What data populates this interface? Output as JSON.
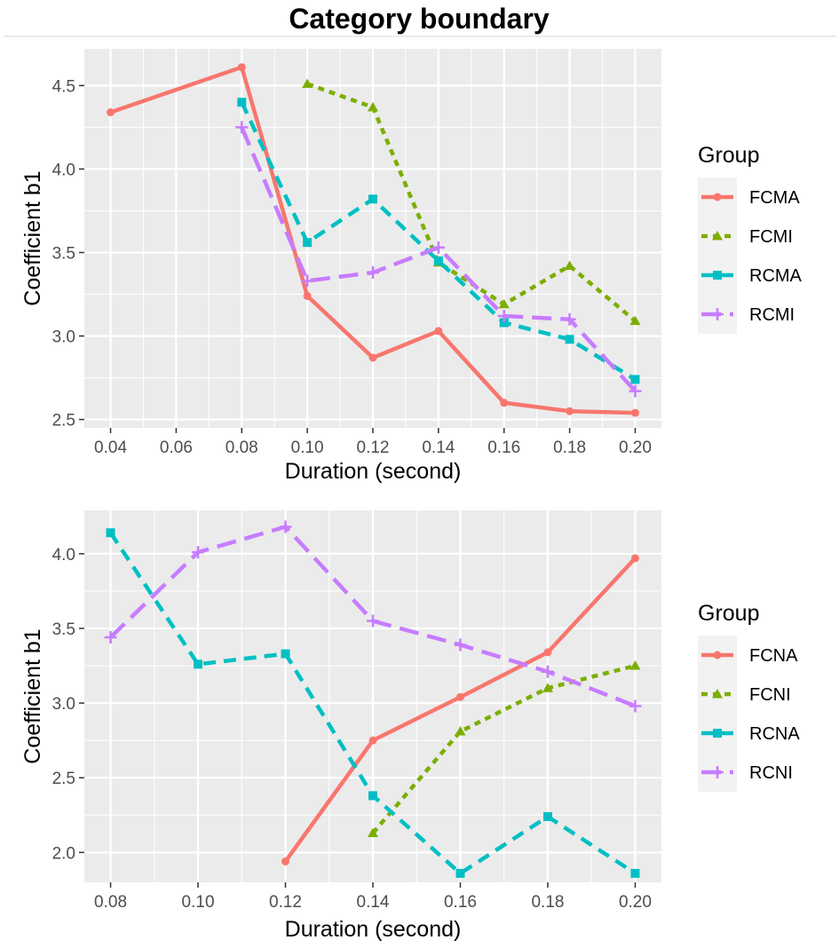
{
  "figure": {
    "title": "Category boundary"
  },
  "colors": {
    "background": "#ffffff",
    "panel": "#ebebeb",
    "grid": "#ffffff",
    "series": [
      "#f8766d",
      "#7cae00",
      "#00bfc4",
      "#c77cff"
    ]
  },
  "chart_data": [
    {
      "type": "line",
      "title": "",
      "xlabel": "Duration (second)",
      "ylabel": "Coefficient b1",
      "xlim": [
        0.032,
        0.208
      ],
      "ylim": [
        2.45,
        4.72
      ],
      "x_ticks": [
        0.04,
        0.06,
        0.08,
        0.1,
        0.12,
        0.14,
        0.16,
        0.18,
        0.2
      ],
      "x_tick_labels": [
        "0.04",
        "0.06",
        "0.08",
        "0.10",
        "0.12",
        "0.14",
        "0.16",
        "0.18",
        "0.20"
      ],
      "y_ticks": [
        2.5,
        3.0,
        3.5,
        4.0,
        4.5
      ],
      "y_tick_labels": [
        "2.5",
        "3.0",
        "3.5",
        "4.0",
        "4.5"
      ],
      "legend": {
        "title": "Group",
        "placement": "right"
      },
      "series": [
        {
          "name": "FCMA",
          "marker": "circle",
          "dash": "solid",
          "x": [
            0.04,
            0.08,
            0.1,
            0.12,
            0.14,
            0.16,
            0.18,
            0.2
          ],
          "values": [
            4.34,
            4.61,
            3.24,
            2.87,
            3.03,
            2.6,
            2.55,
            2.54
          ]
        },
        {
          "name": "FCMI",
          "marker": "triangle",
          "dash": "dotted",
          "x": [
            0.1,
            0.12,
            0.14,
            0.16,
            0.18,
            0.2
          ],
          "values": [
            4.51,
            4.37,
            3.44,
            3.19,
            3.42,
            3.09
          ]
        },
        {
          "name": "RCMA",
          "marker": "square",
          "dash": "dashed",
          "x": [
            0.08,
            0.1,
            0.12,
            0.14,
            0.16,
            0.18,
            0.2
          ],
          "values": [
            4.4,
            3.56,
            3.82,
            3.45,
            3.08,
            2.98,
            2.74
          ]
        },
        {
          "name": "RCMI",
          "marker": "plus",
          "dash": "longdash",
          "x": [
            0.08,
            0.1,
            0.12,
            0.14,
            0.16,
            0.18,
            0.2
          ],
          "values": [
            4.25,
            3.33,
            3.38,
            3.53,
            3.12,
            3.1,
            2.67
          ]
        }
      ]
    },
    {
      "type": "line",
      "title": "",
      "xlabel": "Duration (second)",
      "ylabel": "Coefficient b1",
      "xlim": [
        0.074,
        0.206
      ],
      "ylim": [
        1.8,
        4.29
      ],
      "x_ticks": [
        0.08,
        0.1,
        0.12,
        0.14,
        0.16,
        0.18,
        0.2
      ],
      "x_tick_labels": [
        "0.08",
        "0.10",
        "0.12",
        "0.14",
        "0.16",
        "0.18",
        "0.20"
      ],
      "y_ticks": [
        2.0,
        2.5,
        3.0,
        3.5,
        4.0
      ],
      "y_tick_labels": [
        "2.0",
        "2.5",
        "3.0",
        "3.5",
        "4.0"
      ],
      "legend": {
        "title": "Group",
        "placement": "right"
      },
      "series": [
        {
          "name": "FCNA",
          "marker": "circle",
          "dash": "solid",
          "x": [
            0.12,
            0.14,
            0.16,
            0.18,
            0.2
          ],
          "values": [
            1.94,
            2.75,
            3.04,
            3.34,
            3.97
          ]
        },
        {
          "name": "FCNI",
          "marker": "triangle",
          "dash": "dotted",
          "x": [
            0.14,
            0.16,
            0.18,
            0.2
          ],
          "values": [
            2.13,
            2.81,
            3.1,
            3.25
          ]
        },
        {
          "name": "RCNA",
          "marker": "square",
          "dash": "dashed",
          "x": [
            0.08,
            0.1,
            0.12,
            0.14,
            0.16,
            0.18,
            0.2
          ],
          "values": [
            4.14,
            3.26,
            3.33,
            2.38,
            1.86,
            2.24,
            1.86
          ]
        },
        {
          "name": "RCNI",
          "marker": "plus",
          "dash": "longdash",
          "x": [
            0.08,
            0.1,
            0.12,
            0.14,
            0.16,
            0.18,
            0.2
          ],
          "values": [
            3.44,
            4.01,
            4.18,
            3.55,
            3.39,
            3.21,
            2.98
          ]
        }
      ]
    }
  ]
}
